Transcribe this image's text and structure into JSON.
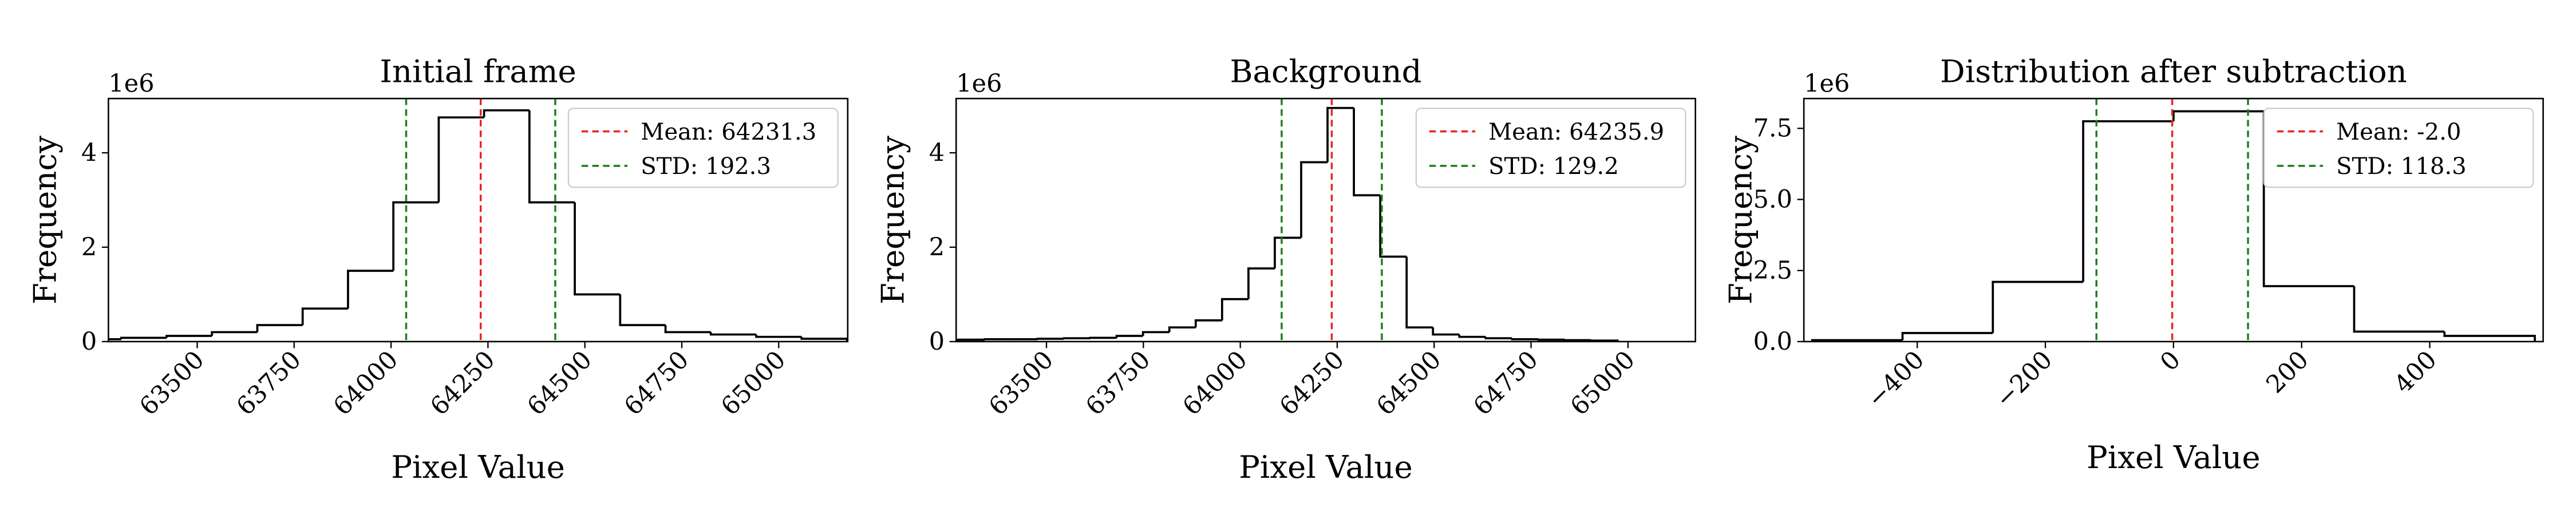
{
  "chart_data": [
    {
      "type": "histogram",
      "title": "Initial frame",
      "xlabel": "Pixel Value",
      "ylabel": "Frequency",
      "y_offset_label": "1e6",
      "color": "black",
      "bins": [
        63187,
        63304,
        63421,
        63538,
        63655,
        63772,
        63889,
        64006,
        64123,
        64240,
        64357,
        64474,
        64591,
        64708,
        64825,
        64942,
        65059,
        65176
      ],
      "counts": [
        0.05,
        0.08,
        0.12,
        0.2,
        0.35,
        0.7,
        1.5,
        2.95,
        4.75,
        4.9,
        2.95,
        1.0,
        0.35,
        0.2,
        0.15,
        0.1,
        0.06
      ],
      "lines": [
        {
          "name": "Mean: 64231.3",
          "color": "#e8251f",
          "x": [
            64231.3
          ]
        },
        {
          "name": "STD: 192.3",
          "color": "#1a7f1a",
          "x": [
            64039.0,
            64423.6
          ]
        }
      ],
      "xlim": [
        63271,
        65178
      ],
      "ylim": [
        0,
        5.15
      ],
      "xticks": [
        63500,
        63750,
        64000,
        64250,
        64500,
        64750,
        65000
      ],
      "yticks": [
        0,
        2,
        4
      ],
      "legend": "upper right"
    },
    {
      "type": "histogram",
      "title": "Background",
      "xlabel": "Pixel Value",
      "ylabel": "Frequency",
      "y_offset_label": "1e6",
      "color": "black",
      "bins": [
        63205,
        63273,
        63341,
        63409,
        63477,
        63545,
        63613,
        63681,
        63749,
        63817,
        63885,
        63953,
        64021,
        64089,
        64157,
        64225,
        64293,
        64361,
        64429,
        64497,
        64565,
        64633,
        64701,
        64769,
        64837,
        64905,
        64973
      ],
      "counts": [
        0.03,
        0.04,
        0.05,
        0.05,
        0.06,
        0.07,
        0.08,
        0.12,
        0.2,
        0.3,
        0.45,
        0.9,
        1.55,
        2.2,
        3.8,
        4.95,
        3.1,
        1.8,
        0.3,
        0.15,
        0.1,
        0.07,
        0.05,
        0.04,
        0.03,
        0.02
      ],
      "lines": [
        {
          "name": "Mean: 64235.9",
          "color": "#e8251f",
          "x": [
            64235.9
          ]
        },
        {
          "name": "STD: 129.2",
          "color": "#1a7f1a",
          "x": [
            64106.7,
            64365.1
          ]
        }
      ],
      "xlim": [
        63267,
        65174
      ],
      "ylim": [
        0,
        5.15
      ],
      "xticks": [
        63500,
        63750,
        64000,
        64250,
        64500,
        64750,
        65000
      ],
      "yticks": [
        0,
        2,
        4
      ],
      "legend": "upper right"
    },
    {
      "type": "histogram",
      "title": "Distribution after subtraction",
      "xlabel": "Pixel Value",
      "ylabel": "Frequency",
      "y_offset_label": "1e6",
      "color": "black",
      "bins": [
        -564,
        -423,
        -282,
        -141,
        0,
        141,
        282,
        423,
        564
      ],
      "counts": [
        0.05,
        0.3,
        2.1,
        7.75,
        8.1,
        1.95,
        0.35,
        0.2
      ],
      "lines": [
        {
          "name": "Mean: -2.0",
          "color": "#e8251f",
          "x": [
            -2.0
          ]
        },
        {
          "name": "STD: 118.3",
          "color": "#1a7f1a",
          "x": [
            -120.3,
            116.3
          ]
        }
      ],
      "xlim": [
        -577,
        577
      ],
      "ylim": [
        0,
        8.55
      ],
      "xticks": [
        {
          "value": -400,
          "label": "−400"
        },
        {
          "value": -200,
          "label": "−200"
        },
        0,
        200,
        400
      ],
      "yticks": [
        {
          "value": 0,
          "label": "0.0"
        },
        {
          "value": 2.5,
          "label": "2.5"
        },
        {
          "value": 5,
          "label": "5.0"
        },
        {
          "value": 7.5,
          "label": "7.5"
        }
      ],
      "legend": "upper right"
    }
  ]
}
